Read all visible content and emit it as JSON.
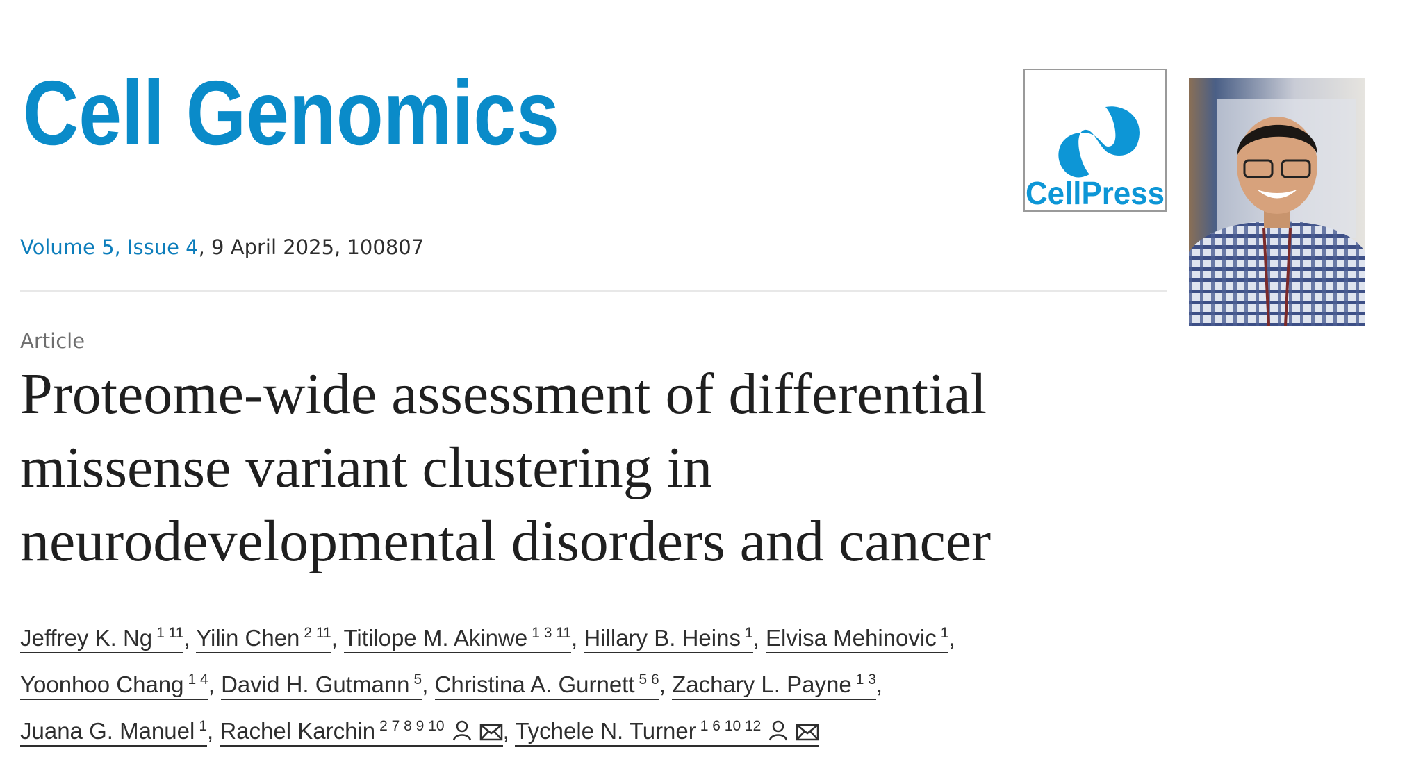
{
  "header": {
    "journal": "Cell Genomics",
    "publisher": "CellPress"
  },
  "issue": {
    "link": "Volume 5, Issue 4",
    "details": ", 9 April 2025, 100807"
  },
  "article": {
    "type": "Article",
    "title": "Proteome-wide assessment of differential missense variant clustering in neurodevelopmental disorders and cancer",
    "author_separator": ",",
    "authors": [
      {
        "name": "Jeffrey K. Ng",
        "affiliations": "1 11",
        "corresponding": false
      },
      {
        "name": "Yilin Chen",
        "affiliations": "2 11",
        "corresponding": false
      },
      {
        "name": "Titilope M. Akinwe",
        "affiliations": "1 3 11",
        "corresponding": false
      },
      {
        "name": "Hillary B. Heins",
        "affiliations": "1",
        "corresponding": false
      },
      {
        "name": "Elvisa Mehinovic",
        "affiliations": "1",
        "corresponding": false
      },
      {
        "name": "Yoonhoo Chang",
        "affiliations": "1 4",
        "corresponding": false
      },
      {
        "name": "David H. Gutmann",
        "affiliations": "5",
        "corresponding": false
      },
      {
        "name": "Christina A. Gurnett",
        "affiliations": "5 6",
        "corresponding": false
      },
      {
        "name": "Zachary L. Payne",
        "affiliations": "1 3",
        "corresponding": false
      },
      {
        "name": "Juana G. Manuel",
        "affiliations": "1",
        "corresponding": false
      },
      {
        "name": "Rachel Karchin",
        "affiliations": "2 7 8 9 10",
        "corresponding": true
      },
      {
        "name": "Tychele N. Turner",
        "affiliations": "1 6 10 12",
        "corresponding": true
      }
    ]
  }
}
